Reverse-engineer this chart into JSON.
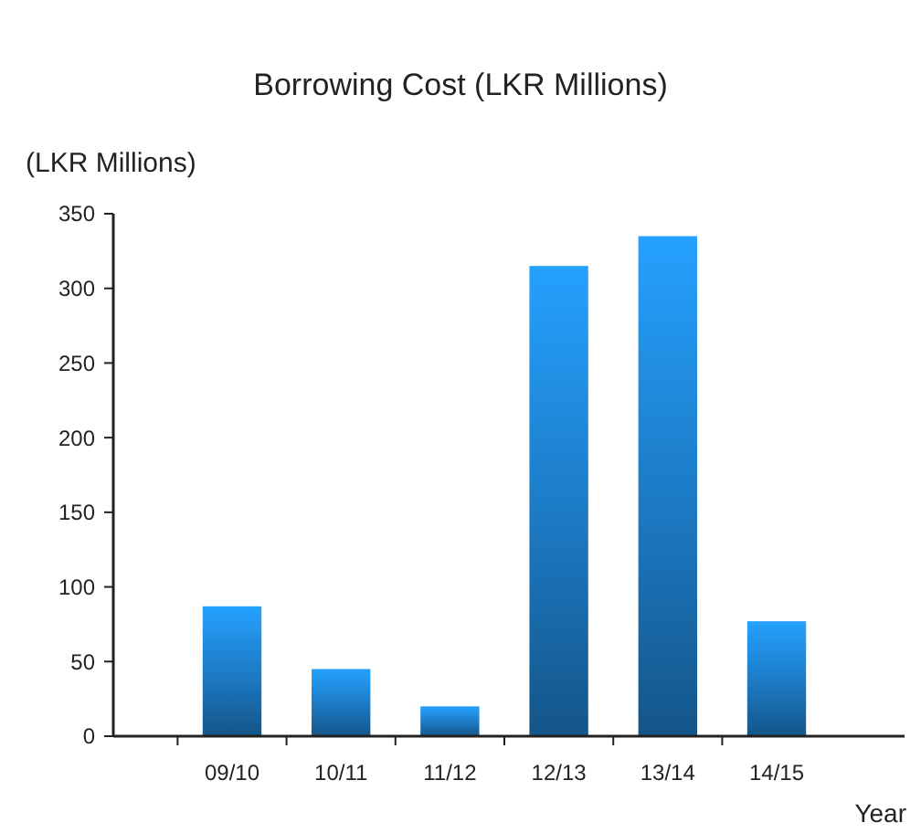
{
  "chart_data": {
    "type": "bar",
    "title": "Borrowing Cost (LKR Millions)",
    "ylabel": "(LKR Millions)",
    "xlabel": "Year",
    "categories": [
      "09/10",
      "10/11",
      "11/12",
      "12/13",
      "13/14",
      "14/15"
    ],
    "values": [
      87,
      45,
      20,
      315,
      335,
      77
    ],
    "color": "#1b75bc",
    "ylim": [
      0,
      350
    ],
    "yticks": [
      0,
      50,
      100,
      150,
      200,
      250,
      300,
      350
    ],
    "grid": false
  }
}
